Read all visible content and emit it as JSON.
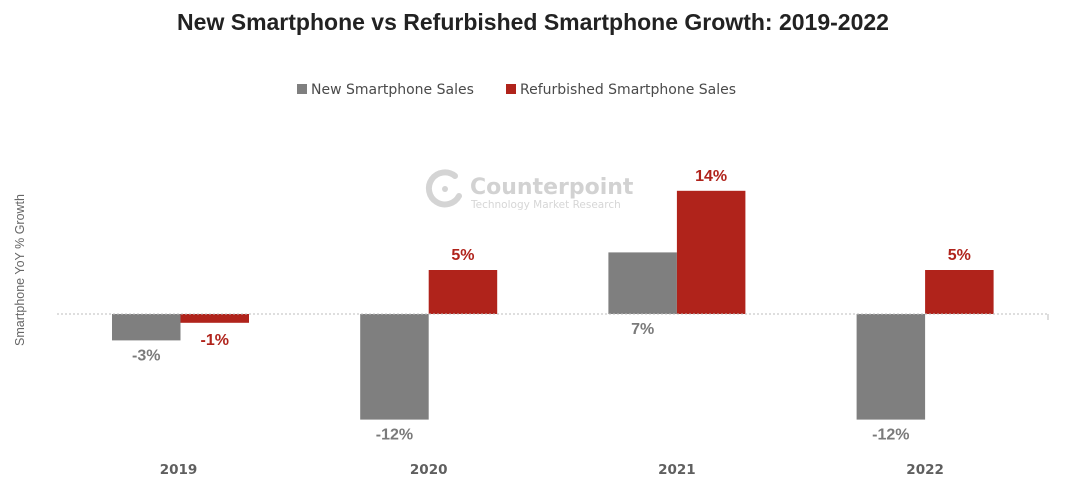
{
  "chart_data": {
    "type": "bar",
    "title": "New Smartphone vs Refurbished Smartphone Growth: 2019-2022",
    "xlabel": "",
    "ylabel": "Smartphone YoY % Growth",
    "categories": [
      "2019",
      "2020",
      "2021",
      "2022"
    ],
    "series": [
      {
        "name": "New Smartphone Sales",
        "color": "#7f7f7f",
        "label_color": "#7a7a7a",
        "values": [
          -3,
          -12,
          7,
          -12
        ],
        "labels": [
          "-3%",
          "-12%",
          "7%",
          "-12%"
        ]
      },
      {
        "name": "Refurbished Smartphone Sales",
        "color": "#b0231b",
        "label_color": "#b0231b",
        "values": [
          -1,
          5,
          14,
          5
        ],
        "labels": [
          "-1%",
          "5%",
          "14%",
          "5%"
        ]
      }
    ],
    "ylim": [
      -12,
      14
    ],
    "grid": false,
    "legend_position": "top-center",
    "zero_line": "dotted"
  },
  "watermark": {
    "brand": "Counterpoint",
    "tagline": "Technology Market Research",
    "icon": "counterpoint-logo-icon"
  }
}
